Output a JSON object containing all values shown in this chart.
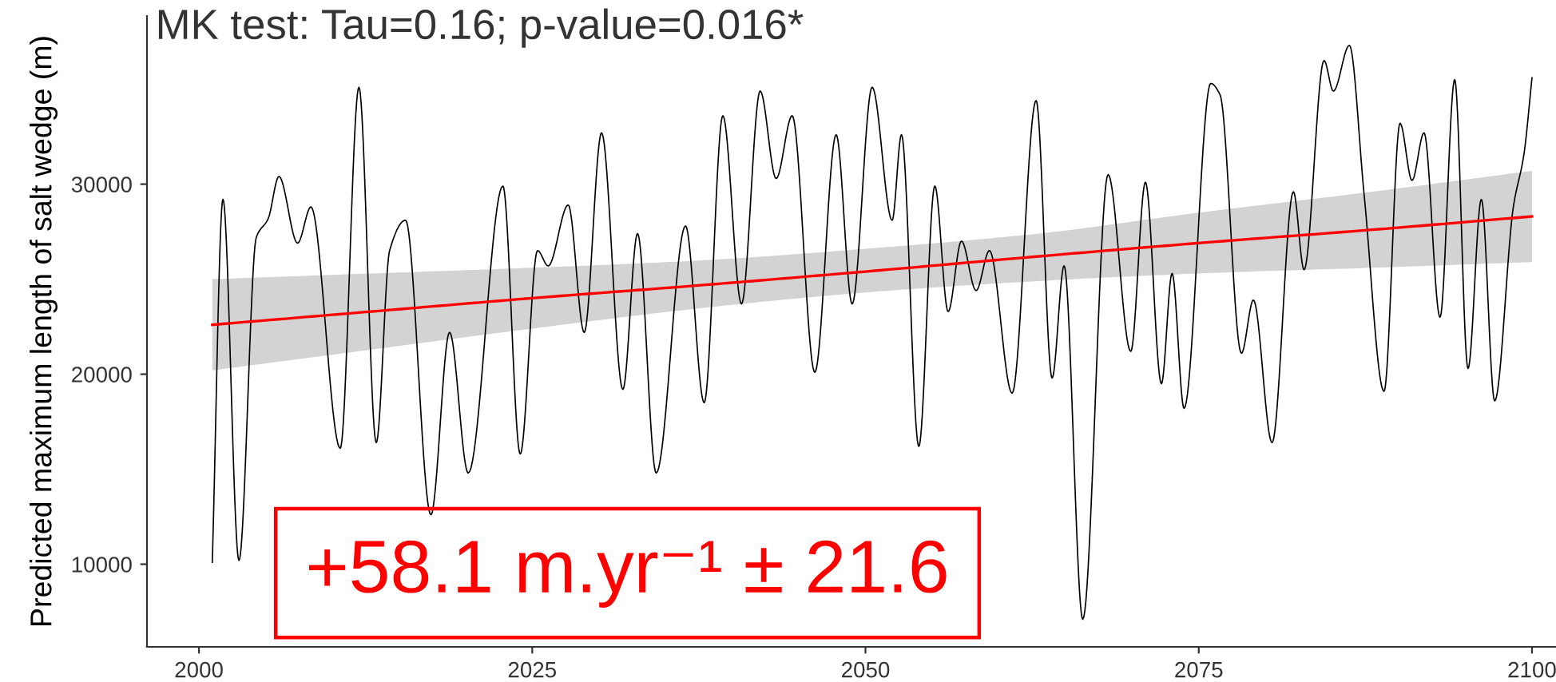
{
  "chart_data": {
    "type": "line",
    "title": "MK test: Tau=0.16; p-value=0.016*",
    "ylabel": "Predicted maximum length of salt wedge (m)",
    "annotations": [
      "+58.1 m.yr⁻¹ ± 21.6"
    ],
    "xlim": [
      1996.1,
      2101.8
    ],
    "xticks": [
      2000,
      2025,
      2050,
      2075,
      2100
    ],
    "ylim": [
      5650,
      38850
    ],
    "yticks": [
      10000,
      20000,
      30000
    ],
    "series": [
      {
        "color": "#000000",
        "x": [
          2001.0,
          2001.8,
          2003.0,
          2004.3,
          2005.2,
          2006.0,
          2007.4,
          2008.4,
          2010.6,
          2012.0,
          2013.3,
          2014.3,
          2015.5,
          2017.4,
          2018.8,
          2020.2,
          2022.8,
          2024.1,
          2025.4,
          2026.2,
          2027.7,
          2028.9,
          2030.2,
          2031.8,
          2032.9,
          2034.3,
          2036.5,
          2037.9,
          2039.3,
          2040.7,
          2042.1,
          2043.3,
          2044.5,
          2046.2,
          2047.8,
          2049.0,
          2050.5,
          2052.0,
          2052.7,
          2054.0,
          2055.2,
          2056.2,
          2057.2,
          2058.3,
          2059.3,
          2061.0,
          2062.8,
          2064.0,
          2064.9,
          2066.3,
          2068.2,
          2069.9,
          2071.0,
          2072.2,
          2073.0,
          2073.9,
          2075.9,
          2076.6,
          2078.2,
          2079.1,
          2080.5,
          2082.1,
          2082.9,
          2084.4,
          2085.1,
          2086.3,
          2087.4,
          2088.9,
          2090.1,
          2091.0,
          2091.9,
          2093.1,
          2094.2,
          2095.2,
          2096.2,
          2097.2,
          2098.6,
          2099.4,
          2100.0
        ],
        "values": [
          10100,
          29200,
          10200,
          27200,
          28200,
          30400,
          26900,
          28800,
          16100,
          35100,
          16400,
          26500,
          28100,
          12600,
          22200,
          14800,
          29900,
          15800,
          26500,
          25700,
          28900,
          22200,
          32700,
          19200,
          27400,
          14800,
          27800,
          18500,
          33600,
          23700,
          34900,
          30300,
          33600,
          20100,
          32600,
          23700,
          35100,
          28100,
          32600,
          16200,
          29900,
          23300,
          27000,
          24400,
          26500,
          19000,
          34400,
          19800,
          25700,
          7100,
          30500,
          21200,
          30100,
          19500,
          25300,
          18200,
          35300,
          34700,
          21100,
          23900,
          16400,
          29600,
          25500,
          36500,
          34900,
          37300,
          29500,
          19100,
          33200,
          30200,
          32700,
          23000,
          35500,
          20300,
          29200,
          18600,
          28800,
          31600,
          35600
        ]
      },
      {
        "color": "#ff0000",
        "x": [
          2001,
          2013,
          2025,
          2038,
          2050,
          2063,
          2075,
          2088,
          2100
        ],
        "values": [
          22600,
          23300,
          24000,
          24700,
          25400,
          26200,
          26900,
          27600,
          28300
        ],
        "lower": [
          20200,
          21300,
          22400,
          23500,
          24300,
          24900,
          25300,
          25600,
          25900
        ],
        "upper": [
          25000,
          25300,
          25600,
          26000,
          26600,
          27400,
          28500,
          29600,
          30700
        ]
      }
    ]
  }
}
